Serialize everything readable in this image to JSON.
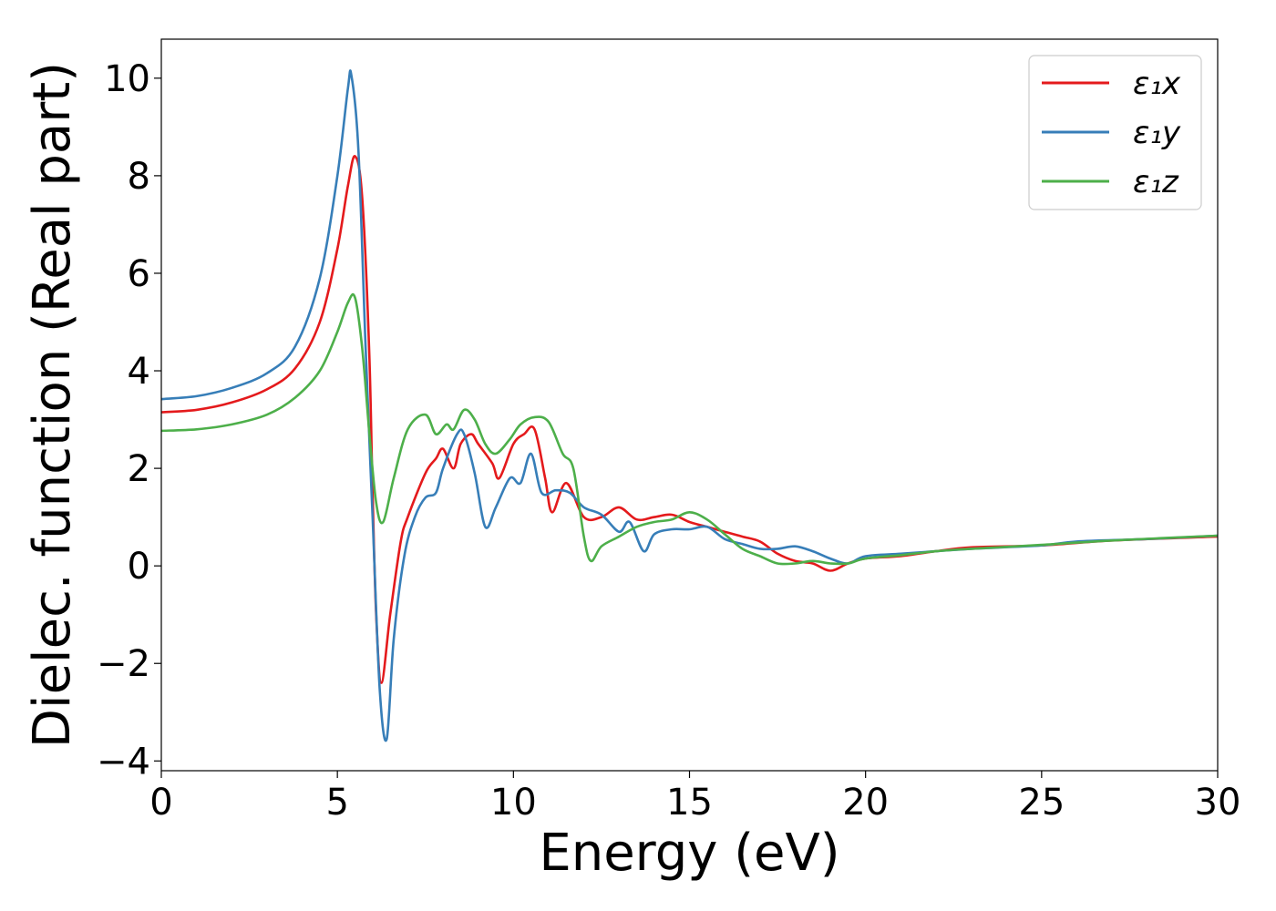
{
  "chart_data": {
    "type": "line",
    "title": "",
    "xlabel": "Energy (eV)",
    "ylabel": "Dielec. function (Real part)",
    "xlim": [
      0,
      30
    ],
    "ylim": [
      -4.2,
      10.8
    ],
    "xticks": [
      0,
      5,
      10,
      15,
      20,
      25,
      30
    ],
    "yticks": [
      -4,
      -2,
      0,
      2,
      4,
      6,
      8,
      10
    ],
    "xtick_labels": [
      "0",
      "5",
      "10",
      "15",
      "20",
      "25",
      "30"
    ],
    "ytick_labels": [
      "−4",
      "−2",
      "0",
      "2",
      "4",
      "6",
      "8",
      "10"
    ],
    "grid": false,
    "legend_position": "top-right",
    "series": [
      {
        "name": "ε₁x",
        "color": "#e41a1c",
        "points": [
          [
            0,
            3.15
          ],
          [
            1,
            3.2
          ],
          [
            2,
            3.35
          ],
          [
            3,
            3.62
          ],
          [
            3.8,
            4.05
          ],
          [
            4.5,
            5.0
          ],
          [
            5.0,
            6.5
          ],
          [
            5.3,
            7.8
          ],
          [
            5.5,
            8.4
          ],
          [
            5.7,
            7.6
          ],
          [
            5.9,
            4.5
          ],
          [
            6.0,
            1.5
          ],
          [
            6.1,
            -1.0
          ],
          [
            6.25,
            -2.4
          ],
          [
            6.5,
            -1.0
          ],
          [
            6.8,
            0.5
          ],
          [
            7.0,
            1.0
          ],
          [
            7.5,
            1.9
          ],
          [
            7.8,
            2.2
          ],
          [
            8.0,
            2.4
          ],
          [
            8.3,
            2.0
          ],
          [
            8.5,
            2.5
          ],
          [
            8.8,
            2.7
          ],
          [
            9.0,
            2.5
          ],
          [
            9.4,
            2.1
          ],
          [
            9.6,
            1.8
          ],
          [
            10.0,
            2.5
          ],
          [
            10.3,
            2.7
          ],
          [
            10.6,
            2.8
          ],
          [
            10.9,
            1.8
          ],
          [
            11.1,
            1.1
          ],
          [
            11.5,
            1.7
          ],
          [
            12.0,
            1.0
          ],
          [
            12.5,
            1.0
          ],
          [
            13.0,
            1.2
          ],
          [
            13.5,
            0.95
          ],
          [
            14.0,
            1.0
          ],
          [
            14.5,
            1.05
          ],
          [
            15.0,
            0.9
          ],
          [
            15.5,
            0.8
          ],
          [
            16.0,
            0.7
          ],
          [
            16.5,
            0.6
          ],
          [
            17.0,
            0.5
          ],
          [
            17.5,
            0.25
          ],
          [
            18.0,
            0.1
          ],
          [
            18.5,
            0.05
          ],
          [
            19.0,
            -0.1
          ],
          [
            19.5,
            0.05
          ],
          [
            20.0,
            0.15
          ],
          [
            21.0,
            0.2
          ],
          [
            22.0,
            0.3
          ],
          [
            23.0,
            0.38
          ],
          [
            25.0,
            0.42
          ],
          [
            27.0,
            0.52
          ],
          [
            30.0,
            0.6
          ]
        ]
      },
      {
        "name": "ε₁y",
        "color": "#377eb8",
        "points": [
          [
            0,
            3.42
          ],
          [
            1,
            3.48
          ],
          [
            2,
            3.65
          ],
          [
            3,
            3.95
          ],
          [
            3.8,
            4.5
          ],
          [
            4.5,
            5.9
          ],
          [
            5.0,
            8.0
          ],
          [
            5.3,
            9.8
          ],
          [
            5.4,
            10.05
          ],
          [
            5.6,
            8.5
          ],
          [
            5.8,
            4.5
          ],
          [
            6.0,
            1.0
          ],
          [
            6.2,
            -2.5
          ],
          [
            6.4,
            -3.55
          ],
          [
            6.6,
            -1.5
          ],
          [
            6.9,
            0.2
          ],
          [
            7.2,
            1.0
          ],
          [
            7.5,
            1.4
          ],
          [
            7.8,
            1.5
          ],
          [
            8.0,
            2.0
          ],
          [
            8.4,
            2.7
          ],
          [
            8.6,
            2.7
          ],
          [
            8.9,
            1.9
          ],
          [
            9.2,
            0.8
          ],
          [
            9.5,
            1.2
          ],
          [
            9.9,
            1.8
          ],
          [
            10.2,
            1.7
          ],
          [
            10.5,
            2.3
          ],
          [
            10.8,
            1.5
          ],
          [
            11.2,
            1.55
          ],
          [
            11.6,
            1.5
          ],
          [
            12.0,
            1.2
          ],
          [
            12.5,
            1.05
          ],
          [
            13.0,
            0.7
          ],
          [
            13.3,
            0.9
          ],
          [
            13.7,
            0.3
          ],
          [
            14.0,
            0.65
          ],
          [
            14.5,
            0.75
          ],
          [
            15.0,
            0.75
          ],
          [
            15.5,
            0.8
          ],
          [
            16.0,
            0.55
          ],
          [
            16.5,
            0.45
          ],
          [
            17.0,
            0.35
          ],
          [
            17.5,
            0.35
          ],
          [
            18.0,
            0.4
          ],
          [
            18.5,
            0.3
          ],
          [
            19.0,
            0.15
          ],
          [
            19.5,
            0.05
          ],
          [
            20.0,
            0.2
          ],
          [
            21.0,
            0.25
          ],
          [
            22.0,
            0.3
          ],
          [
            23.0,
            0.35
          ],
          [
            25.0,
            0.42
          ],
          [
            26.0,
            0.5
          ],
          [
            28.0,
            0.55
          ],
          [
            30.0,
            0.62
          ]
        ]
      },
      {
        "name": "ε₁z",
        "color": "#4daf4a",
        "points": [
          [
            0,
            2.77
          ],
          [
            1,
            2.8
          ],
          [
            2,
            2.9
          ],
          [
            3,
            3.1
          ],
          [
            3.8,
            3.45
          ],
          [
            4.5,
            4.0
          ],
          [
            5.0,
            4.8
          ],
          [
            5.3,
            5.4
          ],
          [
            5.5,
            5.5
          ],
          [
            5.7,
            4.5
          ],
          [
            5.9,
            2.8
          ],
          [
            6.1,
            1.3
          ],
          [
            6.3,
            0.9
          ],
          [
            6.6,
            1.8
          ],
          [
            7.0,
            2.8
          ],
          [
            7.5,
            3.1
          ],
          [
            7.8,
            2.7
          ],
          [
            8.1,
            2.9
          ],
          [
            8.3,
            2.8
          ],
          [
            8.6,
            3.2
          ],
          [
            8.9,
            3.0
          ],
          [
            9.2,
            2.5
          ],
          [
            9.5,
            2.3
          ],
          [
            9.9,
            2.6
          ],
          [
            10.2,
            2.9
          ],
          [
            10.6,
            3.05
          ],
          [
            11.0,
            2.95
          ],
          [
            11.4,
            2.3
          ],
          [
            11.7,
            2.0
          ],
          [
            12.0,
            0.6
          ],
          [
            12.2,
            0.1
          ],
          [
            12.5,
            0.4
          ],
          [
            13.0,
            0.6
          ],
          [
            13.5,
            0.8
          ],
          [
            14.0,
            0.9
          ],
          [
            14.5,
            0.95
          ],
          [
            15.0,
            1.1
          ],
          [
            15.5,
            0.95
          ],
          [
            16.0,
            0.65
          ],
          [
            16.5,
            0.35
          ],
          [
            17.0,
            0.2
          ],
          [
            17.5,
            0.05
          ],
          [
            18.0,
            0.05
          ],
          [
            18.5,
            0.1
          ],
          [
            19.0,
            0.05
          ],
          [
            19.5,
            0.05
          ],
          [
            20.0,
            0.15
          ],
          [
            21.0,
            0.22
          ],
          [
            22.0,
            0.3
          ],
          [
            23.0,
            0.35
          ],
          [
            25.0,
            0.43
          ],
          [
            27.0,
            0.52
          ],
          [
            30.0,
            0.62
          ]
        ]
      }
    ]
  }
}
